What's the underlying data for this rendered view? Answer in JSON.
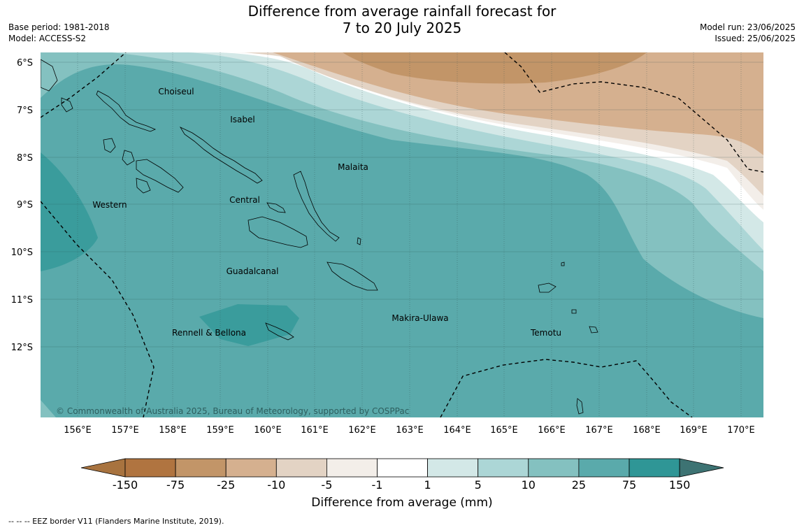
{
  "header": {
    "title_line1": "Difference from average rainfall forecast for",
    "title_line2": "7 to 20 July 2025",
    "base_period": "Base period: 1981-2018",
    "model": "Model: ACCESS-S2",
    "model_run": "Model run: 23/06/2025",
    "issued": "Issued: 25/06/2025"
  },
  "map": {
    "lat_labels": [
      "6°S",
      "7°S",
      "8°S",
      "9°S",
      "10°S",
      "11°S",
      "12°S"
    ],
    "lon_labels": [
      "156°E",
      "157°E",
      "158°E",
      "159°E",
      "160°E",
      "161°E",
      "162°E",
      "163°E",
      "164°E",
      "165°E",
      "166°E",
      "167°E",
      "168°E",
      "169°E",
      "170°E"
    ],
    "regions": [
      "Choiseul",
      "Isabel",
      "Malaita",
      "Western",
      "Central",
      "Guadalcanal",
      "Rennell & Bellona",
      "Makira-Ulawa",
      "Temotu"
    ],
    "copyright": "© Commonwealth of Australia 2025, Bureau of Meteorology, supported by COSPPac"
  },
  "colorbar": {
    "label": "Difference from average (mm)",
    "ticks": [
      "-150",
      "-75",
      "-25",
      "-10",
      "-5",
      "-1",
      "1",
      "5",
      "10",
      "25",
      "75",
      "150"
    ],
    "colors": [
      "#a8733f",
      "#b07440",
      "#c29568",
      "#d5b08f",
      "#e3d3c4",
      "#f3eee9",
      "#ffffff",
      "#d3e8e7",
      "#acd6d6",
      "#84c1c0",
      "#5aaaab",
      "#2f9696",
      "#3d7373"
    ]
  },
  "footnote": "--  --  -- EEZ border V11 (Flanders Marine Institute, 2019)."
}
